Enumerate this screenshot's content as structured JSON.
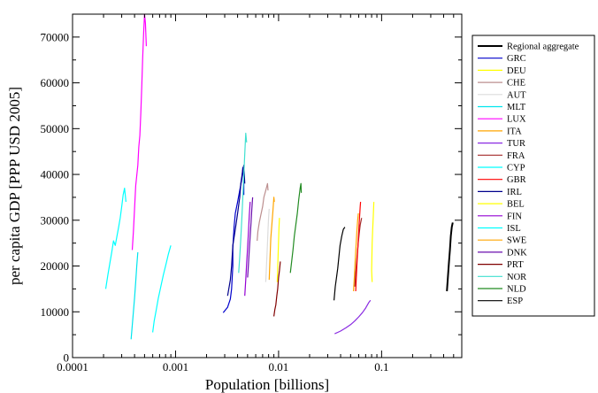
{
  "chart_data": {
    "type": "line",
    "title": "",
    "xlabel": "Population [billions]",
    "ylabel": "per capita GDP [PPP USD 2005]",
    "xscale": "log",
    "xlim": [
      0.0001,
      0.6
    ],
    "ylim": [
      0,
      75000
    ],
    "xticks": [
      {
        "value": 0.0001,
        "label": "0.0001"
      },
      {
        "value": 0.001,
        "label": "0.001"
      },
      {
        "value": 0.01,
        "label": "0.01"
      },
      {
        "value": 0.1,
        "label": "0.1"
      }
    ],
    "yticks": [
      0,
      10000,
      20000,
      30000,
      40000,
      50000,
      60000,
      70000
    ],
    "grid": false,
    "legend_position": "right",
    "series": [
      {
        "name": "Regional aggregate",
        "color": "#000000",
        "width": 2,
        "points": [
          [
            0.43,
            14500
          ],
          [
            0.44,
            17500
          ],
          [
            0.45,
            20500
          ],
          [
            0.46,
            23500
          ],
          [
            0.47,
            26500
          ],
          [
            0.48,
            28500
          ],
          [
            0.49,
            29500
          ]
        ]
      },
      {
        "name": "GRC",
        "color": "#0000cc",
        "points": [
          [
            0.0029,
            9800
          ],
          [
            0.0032,
            11000
          ],
          [
            0.0034,
            12800
          ],
          [
            0.0035,
            15000
          ],
          [
            0.0036,
            20000
          ],
          [
            0.0036,
            24000
          ],
          [
            0.0037,
            28500
          ],
          [
            0.0038,
            31500
          ],
          [
            0.004,
            34000
          ],
          [
            0.0042,
            36500
          ],
          [
            0.0044,
            39000
          ],
          [
            0.0045,
            41500
          ],
          [
            0.0046,
            39000
          ],
          [
            0.0046,
            35500
          ]
        ]
      },
      {
        "name": "DEU",
        "color": "#ffff00",
        "points": [
          [
            0.081,
            16500
          ],
          [
            0.08,
            19000
          ],
          [
            0.0805,
            22000
          ],
          [
            0.081,
            25000
          ],
          [
            0.082,
            28000
          ],
          [
            0.083,
            31000
          ],
          [
            0.084,
            34000
          ]
        ]
      },
      {
        "name": "CHE",
        "color": "#bc8f8f",
        "points": [
          [
            0.0062,
            25500
          ],
          [
            0.0063,
            27500
          ],
          [
            0.0065,
            29500
          ],
          [
            0.0067,
            31000
          ],
          [
            0.007,
            33000
          ],
          [
            0.0072,
            35000
          ],
          [
            0.0075,
            36500
          ],
          [
            0.0078,
            38000
          ],
          [
            0.0079,
            36500
          ]
        ]
      },
      {
        "name": "AUT",
        "color": "#dcdcdc",
        "points": [
          [
            0.0075,
            16500
          ],
          [
            0.0076,
            19000
          ],
          [
            0.0077,
            22000
          ],
          [
            0.0078,
            25000
          ],
          [
            0.0079,
            28000
          ],
          [
            0.008,
            30500
          ],
          [
            0.0081,
            32500
          ]
        ]
      },
      {
        "name": "MLT",
        "color": "#00e5ee",
        "points": [
          [
            0.00037,
            4000
          ],
          [
            0.00038,
            7000
          ],
          [
            0.00039,
            10000
          ],
          [
            0.0004,
            13000
          ],
          [
            0.00041,
            16500
          ],
          [
            0.00042,
            20000
          ],
          [
            0.00043,
            23000
          ]
        ]
      },
      {
        "name": "LUX",
        "color": "#ff00ff",
        "points": [
          [
            0.00038,
            23500
          ],
          [
            0.00039,
            27500
          ],
          [
            0.0004,
            32500
          ],
          [
            0.00041,
            37500
          ],
          [
            0.00043,
            42000
          ],
          [
            0.00044,
            46000
          ],
          [
            0.00045,
            48500
          ],
          [
            0.00046,
            53500
          ],
          [
            0.00047,
            59500
          ],
          [
            0.00048,
            65500
          ],
          [
            0.00049,
            71000
          ],
          [
            0.0005,
            75000
          ],
          [
            0.00051,
            73000
          ],
          [
            0.00052,
            68000
          ]
        ]
      },
      {
        "name": "ITA",
        "color": "#ffa500",
        "points": [
          [
            0.0534,
            14500
          ],
          [
            0.0545,
            18000
          ],
          [
            0.0555,
            21500
          ],
          [
            0.0565,
            24500
          ],
          [
            0.0575,
            27500
          ],
          [
            0.0585,
            30000
          ],
          [
            0.0595,
            31500
          ]
        ]
      },
      {
        "name": "TUR",
        "color": "#8a2be2",
        "points": [
          [
            0.035,
            5200
          ],
          [
            0.04,
            5800
          ],
          [
            0.045,
            6500
          ],
          [
            0.05,
            7200
          ],
          [
            0.055,
            8000
          ],
          [
            0.06,
            8900
          ],
          [
            0.065,
            9800
          ],
          [
            0.07,
            10800
          ],
          [
            0.075,
            12000
          ],
          [
            0.078,
            12500
          ]
        ]
      },
      {
        "name": "FRA",
        "color": "#a52a2a",
        "points": [
          [
            0.055,
            15500
          ],
          [
            0.056,
            18500
          ],
          [
            0.0575,
            21500
          ],
          [
            0.059,
            24500
          ],
          [
            0.0605,
            27000
          ],
          [
            0.062,
            29000
          ],
          [
            0.064,
            30500
          ]
        ]
      },
      {
        "name": "CYP",
        "color": "#00ffff",
        "points": [
          [
            0.0006,
            5500
          ],
          [
            0.00062,
            8000
          ],
          [
            0.00065,
            10500
          ],
          [
            0.00068,
            13000
          ],
          [
            0.00072,
            15500
          ],
          [
            0.00076,
            18000
          ],
          [
            0.00081,
            20500
          ],
          [
            0.00085,
            22500
          ],
          [
            0.0009,
            24500
          ]
        ]
      },
      {
        "name": "GBR",
        "color": "#ff0000",
        "points": [
          [
            0.056,
            14500
          ],
          [
            0.057,
            18000
          ],
          [
            0.058,
            21500
          ],
          [
            0.059,
            24500
          ],
          [
            0.06,
            27500
          ],
          [
            0.061,
            30500
          ],
          [
            0.062,
            33000
          ],
          [
            0.0625,
            34000
          ]
        ]
      },
      {
        "name": "IRL",
        "color": "#00008b",
        "points": [
          [
            0.0032,
            13500
          ],
          [
            0.0034,
            17000
          ],
          [
            0.0035,
            20000
          ],
          [
            0.0036,
            24500
          ],
          [
            0.0038,
            28000
          ],
          [
            0.004,
            31500
          ],
          [
            0.0042,
            35000
          ],
          [
            0.0043,
            38000
          ],
          [
            0.0045,
            41000
          ],
          [
            0.0046,
            42000
          ],
          [
            0.0047,
            38000
          ]
        ]
      },
      {
        "name": "BEL",
        "color": "#ffff00",
        "points": [
          [
            0.0097,
            16500
          ],
          [
            0.0098,
            19500
          ],
          [
            0.0099,
            22500
          ],
          [
            0.01,
            25500
          ],
          [
            0.0101,
            28500
          ],
          [
            0.0102,
            30500
          ]
        ]
      },
      {
        "name": "FIN",
        "color": "#9400d3",
        "points": [
          [
            0.0047,
            13500
          ],
          [
            0.0048,
            17000
          ],
          [
            0.0049,
            20500
          ],
          [
            0.005,
            24000
          ],
          [
            0.0051,
            27500
          ],
          [
            0.0052,
            31000
          ],
          [
            0.0053,
            34000
          ]
        ]
      },
      {
        "name": "ISL",
        "color": "#00ffff",
        "points": [
          [
            0.00021,
            15000
          ],
          [
            0.00022,
            18000
          ],
          [
            0.00023,
            20500
          ],
          [
            0.00024,
            23000
          ],
          [
            0.00025,
            25500
          ],
          [
            0.00026,
            24500
          ],
          [
            0.00027,
            26500
          ],
          [
            0.00028,
            28500
          ],
          [
            0.00029,
            30500
          ],
          [
            0.0003,
            33000
          ],
          [
            0.00031,
            35500
          ],
          [
            0.00032,
            37000
          ],
          [
            0.00033,
            34000
          ]
        ]
      },
      {
        "name": "SWE",
        "color": "#ffa500",
        "points": [
          [
            0.0081,
            17000
          ],
          [
            0.0082,
            20000
          ],
          [
            0.0083,
            23000
          ],
          [
            0.0084,
            26000
          ],
          [
            0.0086,
            29000
          ],
          [
            0.0088,
            32000
          ],
          [
            0.009,
            35000
          ],
          [
            0.0091,
            34000
          ]
        ]
      },
      {
        "name": "DNK",
        "color": "#6a0dad",
        "points": [
          [
            0.005,
            17500
          ],
          [
            0.0051,
            20500
          ],
          [
            0.0052,
            23500
          ],
          [
            0.0053,
            26500
          ],
          [
            0.0054,
            29500
          ],
          [
            0.0055,
            32500
          ],
          [
            0.0056,
            35000
          ]
        ]
      },
      {
        "name": "PRT",
        "color": "#800000",
        "points": [
          [
            0.009,
            9000
          ],
          [
            0.0092,
            10500
          ],
          [
            0.0094,
            11500
          ],
          [
            0.0096,
            13500
          ],
          [
            0.0098,
            15000
          ],
          [
            0.01,
            17500
          ],
          [
            0.0102,
            19000
          ],
          [
            0.0104,
            21000
          ]
        ]
      },
      {
        "name": "NOR",
        "color": "#40e0d0",
        "points": [
          [
            0.0041,
            18500
          ],
          [
            0.0042,
            22000
          ],
          [
            0.0043,
            26000
          ],
          [
            0.0044,
            30500
          ],
          [
            0.0045,
            35000
          ],
          [
            0.0046,
            40000
          ],
          [
            0.0047,
            44500
          ],
          [
            0.0048,
            49000
          ],
          [
            0.0049,
            47000
          ]
        ]
      },
      {
        "name": "NLD",
        "color": "#228b22",
        "points": [
          [
            0.013,
            18500
          ],
          [
            0.0134,
            21000
          ],
          [
            0.0138,
            23500
          ],
          [
            0.0142,
            26500
          ],
          [
            0.0147,
            29000
          ],
          [
            0.0152,
            31500
          ],
          [
            0.0157,
            34500
          ],
          [
            0.0162,
            37000
          ],
          [
            0.0165,
            38000
          ],
          [
            0.0166,
            36000
          ]
        ]
      },
      {
        "name": "ESP",
        "color": "#000000",
        "points": [
          [
            0.0345,
            12500
          ],
          [
            0.0355,
            15500
          ],
          [
            0.0365,
            17500
          ],
          [
            0.0375,
            19500
          ],
          [
            0.0385,
            22000
          ],
          [
            0.0395,
            24500
          ],
          [
            0.041,
            26500
          ],
          [
            0.0425,
            28000
          ],
          [
            0.044,
            28500
          ]
        ]
      }
    ]
  }
}
